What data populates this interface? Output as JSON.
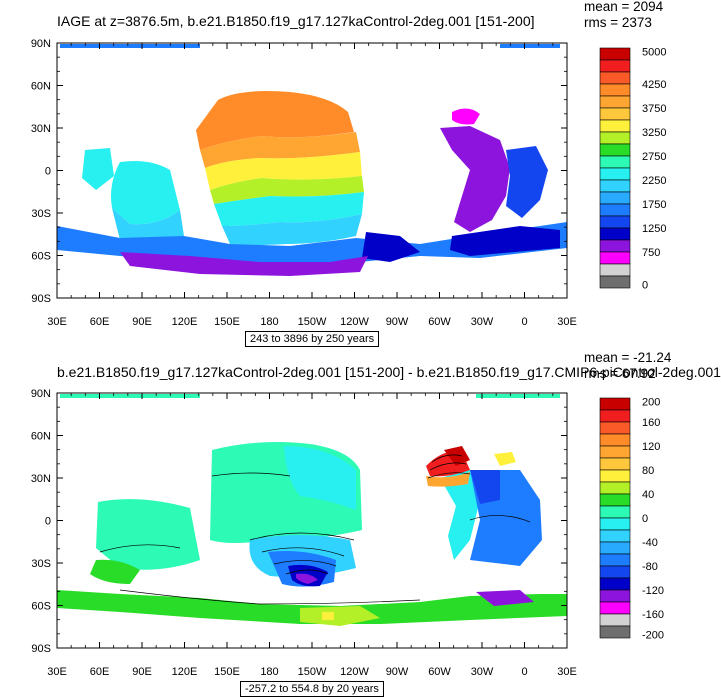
{
  "panels": [
    {
      "id": "top",
      "title": "IAGE at z=3876.5m, b.e21.B1850.f19_g17.127kaControl-2deg.001 [151-200]",
      "stats": {
        "mean": "mean = 2094",
        "rms": "rms = 2373"
      },
      "range_text": "243 to 3896 by 250 years",
      "colorbar_labels": [
        "5000",
        "4250",
        "3750",
        "3250",
        "2750",
        "2250",
        "1750",
        "1250",
        "750",
        "0"
      ],
      "colorbar_colors": [
        "#c80000",
        "#f01e1e",
        "#fa5a28",
        "#ff8c28",
        "#ffa532",
        "#ffc83c",
        "#fff03c",
        "#b4f028",
        "#28dc28",
        "#2dfab4",
        "#28f0f0",
        "#32d2ff",
        "#28aaff",
        "#1e7dff",
        "#1446f0",
        "#0000c8",
        "#8c14dc",
        "#ff00ff",
        "#d2d2d2",
        "#6e6e6e"
      ]
    },
    {
      "id": "bottom",
      "title": "b.e21.B1850.f19_g17.127kaControl-2deg.001 [151-200] - b.e21.B1850.f19_g17.CMIP6-piControl-2deg.001",
      "stats": {
        "mean": "mean = -21.24",
        "rms": "rms = 67.92"
      },
      "range_text": "-257.2 to 554.8 by 20 years",
      "colorbar_labels": [
        "200",
        "160",
        "120",
        "80",
        "40",
        "0",
        "-40",
        "-80",
        "-120",
        "-160",
        "-200"
      ],
      "colorbar_colors": [
        "#c80000",
        "#f01e1e",
        "#fa5a28",
        "#ff8c28",
        "#ffa532",
        "#ffc83c",
        "#fff03c",
        "#b4f028",
        "#28dc28",
        "#2dfab4",
        "#28f0f0",
        "#32d2ff",
        "#28aaff",
        "#1e7dff",
        "#1446f0",
        "#0000c8",
        "#8c14dc",
        "#ff00ff",
        "#d2d2d2",
        "#6e6e6e"
      ]
    }
  ],
  "axes": {
    "lat_labels": [
      "90N",
      "60N",
      "30N",
      "0",
      "30S",
      "60S",
      "90S"
    ],
    "lon_labels": [
      "30E",
      "60E",
      "90E",
      "120E",
      "150E",
      "180",
      "150W",
      "120W",
      "90W",
      "60W",
      "30W",
      "0",
      "30E"
    ]
  },
  "colors": {
    "land": "#ffffff",
    "frame": "#000000",
    "contour": "#000000"
  }
}
